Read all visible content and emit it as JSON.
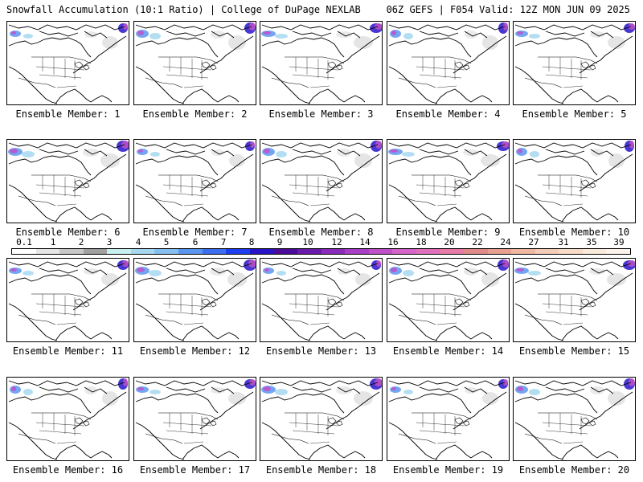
{
  "header": {
    "left": "Snowfall Accumulation (10:1 Ratio) | College of DuPage NEXLAB",
    "right": "06Z GEFS | F054 Valid: 12Z MON JUN 09 2025"
  },
  "panels": [
    {
      "label": "Ensemble Member: 1"
    },
    {
      "label": "Ensemble Member: 2"
    },
    {
      "label": "Ensemble Member: 3"
    },
    {
      "label": "Ensemble Member: 4"
    },
    {
      "label": "Ensemble Member: 5"
    },
    {
      "label": "Ensemble Member: 6"
    },
    {
      "label": "Ensemble Member: 7"
    },
    {
      "label": "Ensemble Member: 8"
    },
    {
      "label": "Ensemble Member: 9"
    },
    {
      "label": "Ensemble Member: 10"
    },
    {
      "label": "Ensemble Member: 11"
    },
    {
      "label": "Ensemble Member: 12"
    },
    {
      "label": "Ensemble Member: 13"
    },
    {
      "label": "Ensemble Member: 14"
    },
    {
      "label": "Ensemble Member: 15"
    },
    {
      "label": "Ensemble Member: 16"
    },
    {
      "label": "Ensemble Member: 17"
    },
    {
      "label": "Ensemble Member: 18"
    },
    {
      "label": "Ensemble Member: 19"
    },
    {
      "label": "Ensemble Member: 20"
    }
  ],
  "colorbar": {
    "tick_labels": [
      "0.1",
      "1",
      "2",
      "3",
      "4",
      "5",
      "6",
      "7",
      "8",
      "9",
      "10",
      "12",
      "14",
      "16",
      "18",
      "20",
      "22",
      "24",
      "27",
      "31",
      "35",
      "39"
    ],
    "colors": [
      "#ffffff",
      "#e6e6e6",
      "#c8c8c8",
      "#a0a0a0",
      "#c8f0f0",
      "#a6d8f0",
      "#84bff0",
      "#5a96f0",
      "#3c6ef0",
      "#1e3cf0",
      "#2814c8",
      "#4a0a9a",
      "#6a1aaa",
      "#8a2aba",
      "#a83ec8",
      "#c050c8",
      "#d464c8",
      "#e070bc",
      "#e87aa8",
      "#e08a8a",
      "#e8a090",
      "#f0b8a0",
      "#f4ccb8",
      "#f8dcc8",
      "#faeadc",
      "#fcf4ec"
    ],
    "no_snow_color": "#ffffff"
  }
}
